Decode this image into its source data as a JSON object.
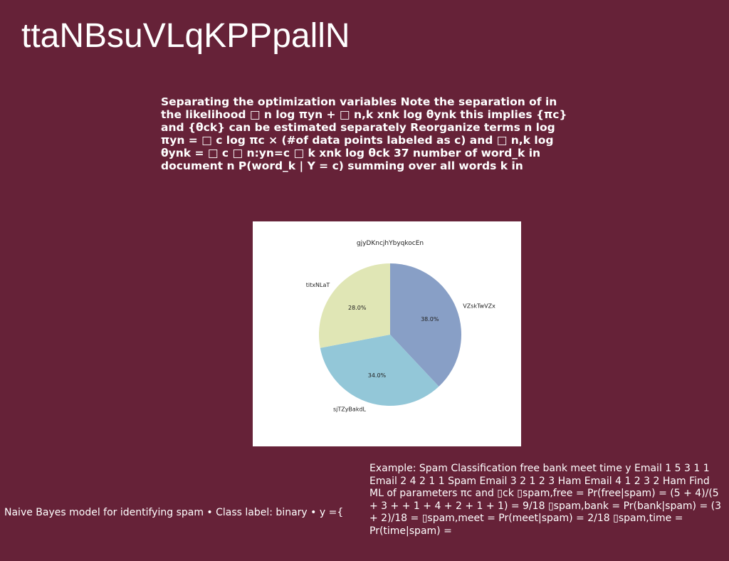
{
  "slide": {
    "title": "ttaNBsuVLqKPPpallN",
    "body": "Separating the optimization variables Note the separation of in the likelihood □ n log πyn + □ n,k xnk log θynk this implies {πc} and {θck} can be estimated separately Reorganize terms n log πyn = □ c log πc × (#of data points labeled as c) and □ n,k log θynk = □ c □ n:yn=c □ k xnk log θck 37 number of word_k in document n P(word_k | Y = c) summing over all words k in",
    "caption_left": "Naive Bayes model for identifying spam • Class label: binary • y ={",
    "caption_right": "Example: Spam Classification free bank meet time y Email 1 5 3 1 1 Email 2 4 2 1 1 Spam Email 3 2 1 2 3 Ham Email 4 1 2 3 2 Ham Find ML of parameters πc and ▯ck ▯spam,free = Pr(free|spam) = (5 + 4)/(5 + 3 + + 1 + 4 + 2 + 1 + 1) = 9/18 ▯spam,bank = Pr(bank|spam) = (3 + 2)/18 = ▯spam,meet = Pr(meet|spam) = 2/18 ▯spam,time = Pr(time|spam) ="
  },
  "chart_data": {
    "type": "pie",
    "title": "gjyDKncjhYbyqkocEn",
    "slices": [
      {
        "label": "VZskTwVZx",
        "value": 38.0,
        "pct_label": "38.0%",
        "color": "#889fc6"
      },
      {
        "label": "sjTZyBakdL",
        "value": 34.0,
        "pct_label": "34.0%",
        "color": "#93c7d8"
      },
      {
        "label": "titxNLaT",
        "value": 28.0,
        "pct_label": "28.0%",
        "color": "#e0e6b5"
      }
    ],
    "start_angle_deg": 90,
    "direction": "clockwise"
  }
}
